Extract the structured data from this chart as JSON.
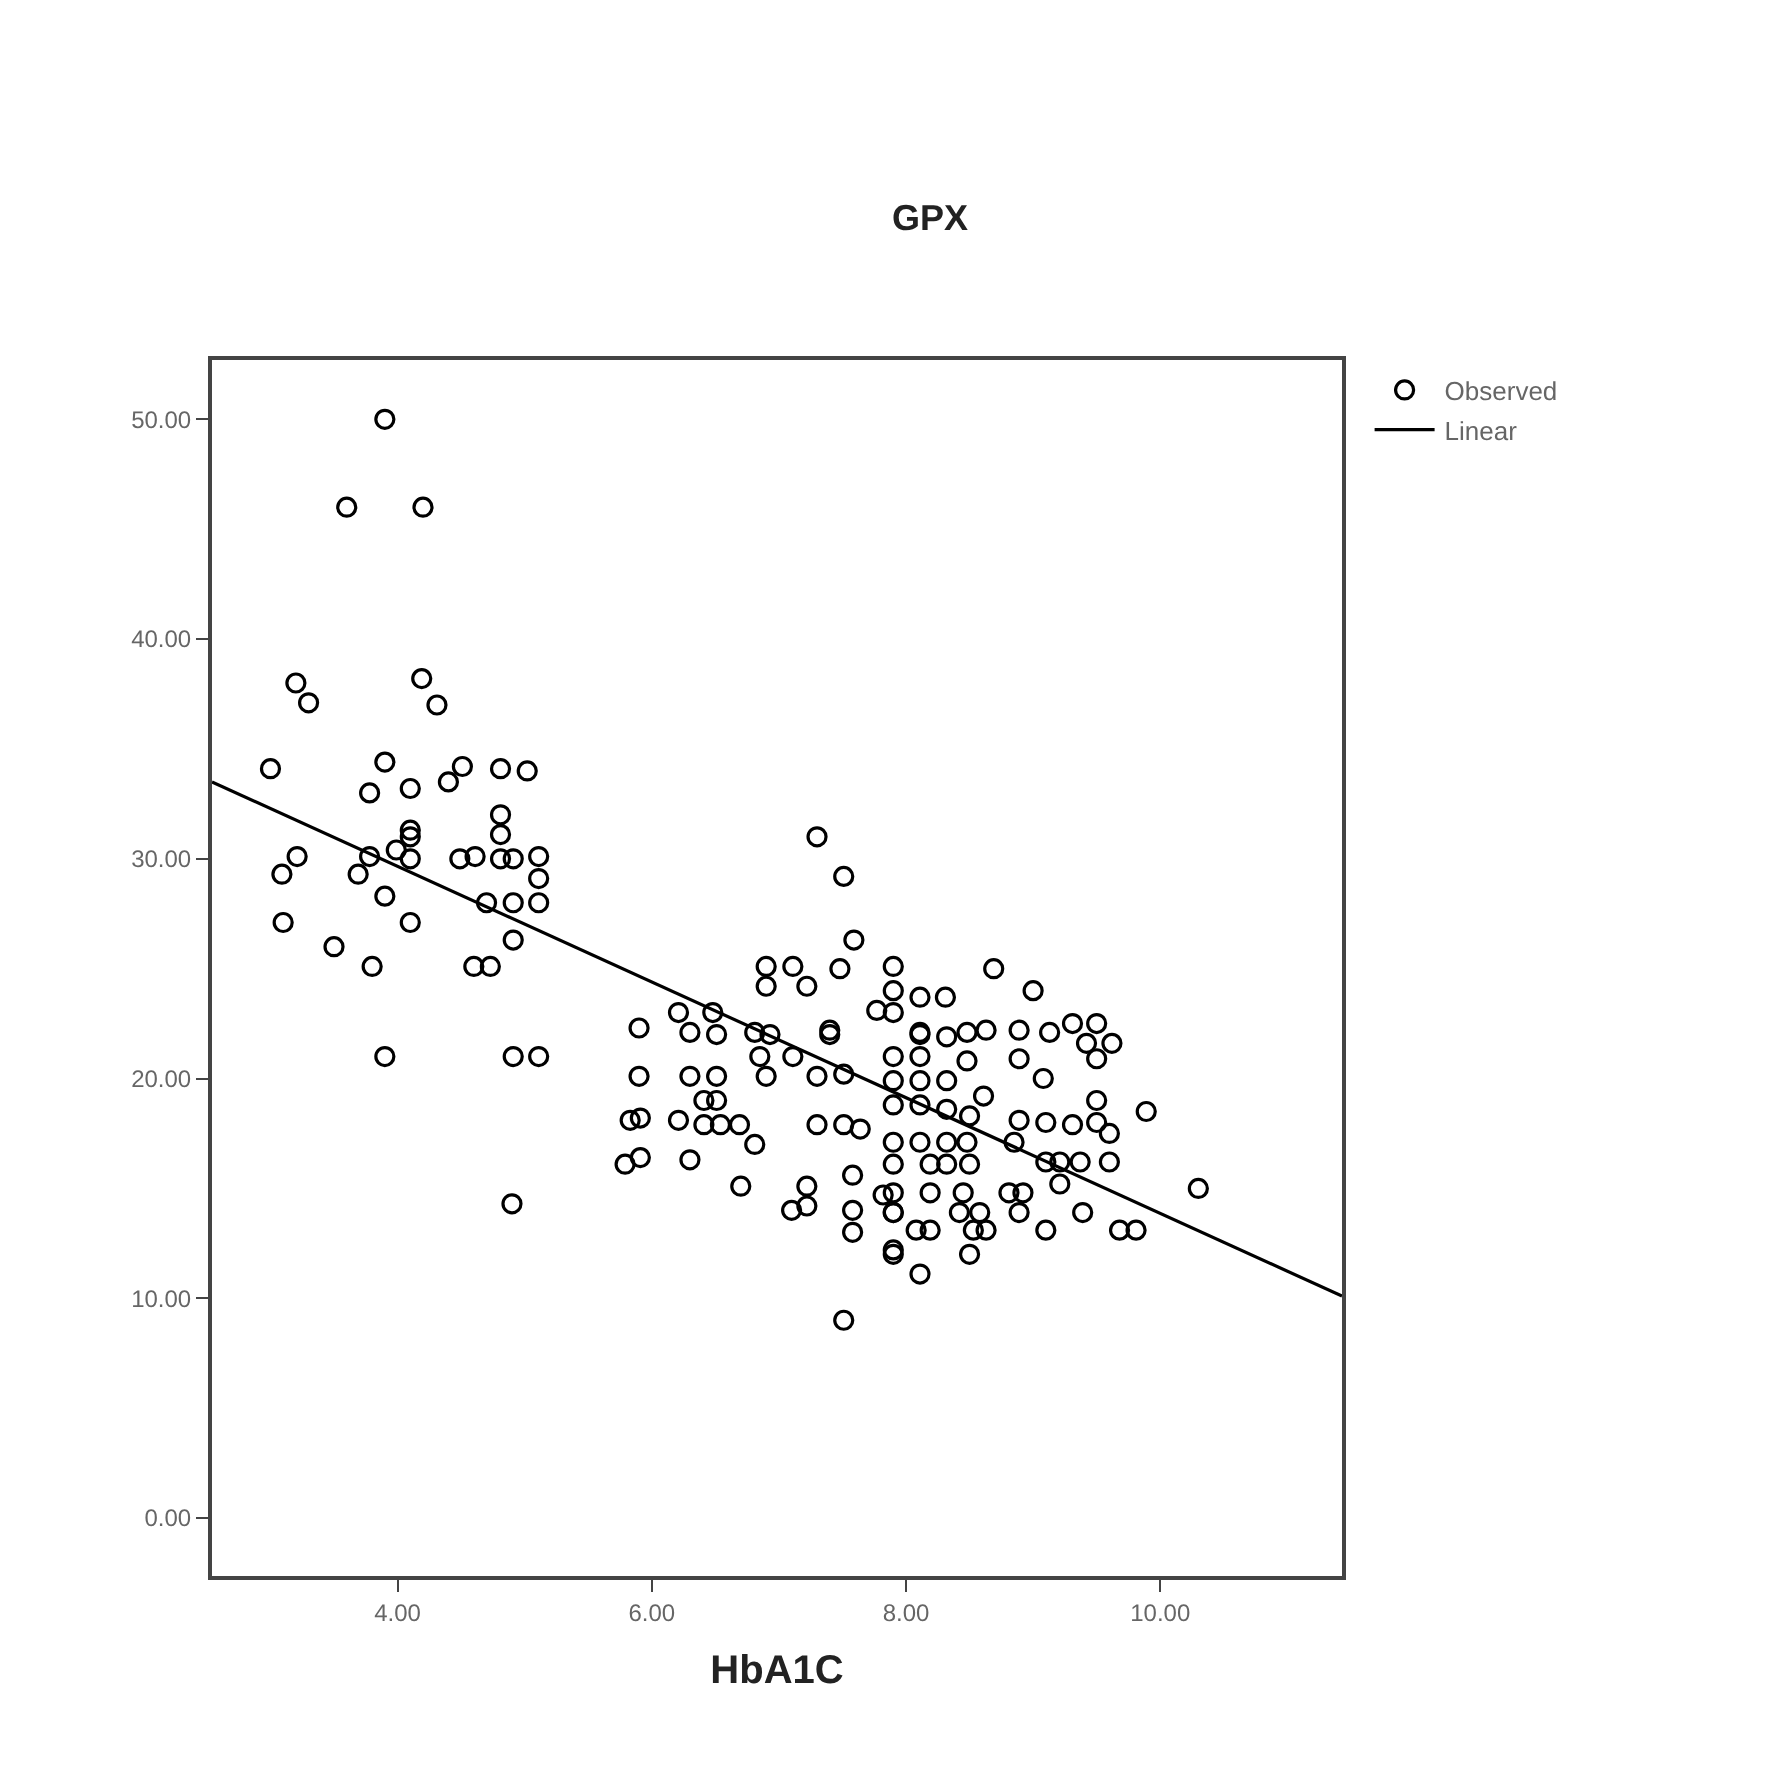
{
  "chart_data": {
    "type": "scatter",
    "title": "GPX",
    "xlabel": "HbA1C",
    "xlim": [
      2.54,
      11.43
    ],
    "ylim": [
      -2.64,
      52.7
    ],
    "xticks": [
      {
        "value": 4,
        "label": "4.00"
      },
      {
        "value": 6,
        "label": "6.00"
      },
      {
        "value": 8,
        "label": "8.00"
      },
      {
        "value": 10,
        "label": "10.00"
      }
    ],
    "yticks": [
      {
        "value": 0,
        "label": "0.00"
      },
      {
        "value": 10,
        "label": "10.00"
      },
      {
        "value": 20,
        "label": "20.00"
      },
      {
        "value": 30,
        "label": "30.00"
      },
      {
        "value": 40,
        "label": "40.00"
      },
      {
        "value": 50,
        "label": "50.00"
      }
    ],
    "legend": "top right",
    "marker": "circle",
    "series": [
      {
        "name": "Observed",
        "color": "#000000",
        "x": [
          3.9,
          3.6,
          4.2,
          3.2,
          3.3,
          4.19,
          4.31,
          3.0,
          3.9,
          3.78,
          4.1,
          4.4,
          4.51,
          4.81,
          5.02,
          4.81,
          4.81,
          4.1,
          4.1,
          3.21,
          3.09,
          3.69,
          3.78,
          3.99,
          4.1,
          4.49,
          4.61,
          4.81,
          4.91,
          5.11,
          5.11,
          3.9,
          4.1,
          3.1,
          4.7,
          4.91,
          5.11,
          4.91,
          3.5,
          3.8,
          4.6,
          4.73,
          3.9,
          4.91,
          5.11,
          4.9,
          7.3,
          7.51,
          7.59,
          7.48,
          6.9,
          7.11,
          6.9,
          7.22,
          7.9,
          7.9,
          8.11,
          8.31,
          7.77,
          7.9,
          5.9,
          6.21,
          6.48,
          6.3,
          6.51,
          6.81,
          6.93,
          7.4,
          7.4,
          8.11,
          6.85,
          7.11,
          5.9,
          6.3,
          6.51,
          6.9,
          7.3,
          7.51,
          6.41,
          6.51,
          5.83,
          5.91,
          6.21,
          6.41,
          6.54,
          6.69,
          6.81,
          7.3,
          7.51,
          7.64,
          5.79,
          5.91,
          6.3,
          6.7,
          7.1,
          7.22,
          7.22,
          7.51,
          7.58,
          7.58,
          7.58,
          7.82,
          7.9,
          7.9,
          8.11,
          8.69,
          9.0,
          9.31,
          9.5,
          9.42,
          9.62,
          9.5,
          9.13,
          8.89,
          8.63,
          8.48,
          8.32,
          8.11,
          7.9,
          8.11,
          8.48,
          8.89,
          9.08,
          7.9,
          8.11,
          8.32,
          8.61,
          9.5,
          9.89,
          7.9,
          8.11,
          8.32,
          8.5,
          8.89,
          9.1,
          9.31,
          9.5,
          9.6,
          7.9,
          8.11,
          8.32,
          8.48,
          8.85,
          9.1,
          9.21,
          9.37,
          9.6,
          8.19,
          8.32,
          8.5,
          7.9,
          10.3,
          7.9,
          8.19,
          8.45,
          8.81,
          8.92,
          9.21,
          9.39,
          7.9,
          8.42,
          8.58,
          8.89,
          8.08,
          8.19,
          8.53,
          8.63,
          9.1,
          9.68,
          9.81,
          7.9,
          8.5
        ],
        "values": [
          50.0,
          46.0,
          46.0,
          38.0,
          37.1,
          38.2,
          37.0,
          34.1,
          34.4,
          33.0,
          33.2,
          33.5,
          34.2,
          34.1,
          34.0,
          32.0,
          31.1,
          31.3,
          31.0,
          30.1,
          29.3,
          29.3,
          30.1,
          30.4,
          30.0,
          30.0,
          30.1,
          30.0,
          30.0,
          30.1,
          29.1,
          28.3,
          27.1,
          27.1,
          28.0,
          28.0,
          28.0,
          26.3,
          26.0,
          25.1,
          25.1,
          25.1,
          21.0,
          21.0,
          21.0,
          14.3,
          31.0,
          29.2,
          26.3,
          25.0,
          25.1,
          25.1,
          24.2,
          24.2,
          25.1,
          24.0,
          23.7,
          23.7,
          23.1,
          23.0,
          22.3,
          23.0,
          23.0,
          22.1,
          22.0,
          22.1,
          22.0,
          22.2,
          22.0,
          22.0,
          21.0,
          21.0,
          20.1,
          20.1,
          20.1,
          20.1,
          20.1,
          20.2,
          19.0,
          19.0,
          18.1,
          18.2,
          18.1,
          17.9,
          17.9,
          17.9,
          17.0,
          17.9,
          17.9,
          17.7,
          16.1,
          16.4,
          16.3,
          15.1,
          14.0,
          14.2,
          15.1,
          9.0,
          15.6,
          14.0,
          13.0,
          14.7,
          13.9,
          12.0,
          11.1,
          25.0,
          24.0,
          22.5,
          22.5,
          21.6,
          21.6,
          20.9,
          22.1,
          22.2,
          22.2,
          22.1,
          21.9,
          22.1,
          21.0,
          21.0,
          20.8,
          20.9,
          20.0,
          19.9,
          19.9,
          19.9,
          19.2,
          19.0,
          18.5,
          18.8,
          18.8,
          18.6,
          18.3,
          18.1,
          18.0,
          17.9,
          18.0,
          17.5,
          17.1,
          17.1,
          17.1,
          17.1,
          17.1,
          16.2,
          16.2,
          16.2,
          16.2,
          16.1,
          16.1,
          16.1,
          16.1,
          15.0,
          14.8,
          14.8,
          14.8,
          14.8,
          14.8,
          15.2,
          13.9,
          13.9,
          13.9,
          13.9,
          13.9,
          13.1,
          13.1,
          13.1,
          13.1,
          13.1,
          13.1,
          13.1,
          12.2,
          12.0
        ]
      },
      {
        "name": "Linear",
        "type": "line",
        "color": "#000000",
        "marker": "none",
        "line_style": "solid",
        "x": [
          2.54,
          11.43
        ],
        "values": [
          33.5,
          10.1
        ]
      }
    ]
  }
}
